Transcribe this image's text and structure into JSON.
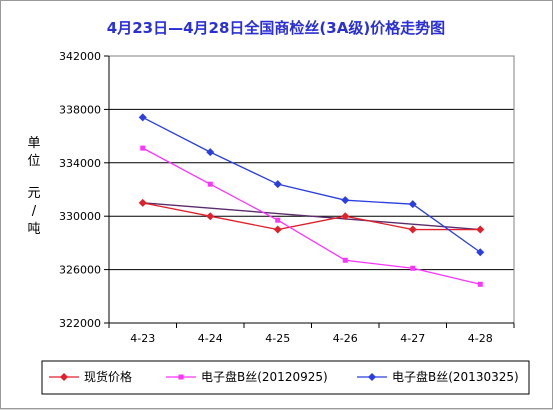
{
  "chart_data": {
    "type": "line",
    "title": "4月23日—4月28日全国商检丝(3A级)价格走势图",
    "ylabel_chars": [
      "单",
      "位",
      "元",
      "/",
      "吨"
    ],
    "categories": [
      "4-23",
      "4-24",
      "4-25",
      "4-26",
      "4-27",
      "4-28"
    ],
    "ylim": [
      322000,
      342000
    ],
    "yticks": [
      322000,
      326000,
      330000,
      334000,
      338000,
      342000
    ],
    "ytick_labels": [
      "322000",
      "326000",
      "330000",
      "334000",
      "338000",
      "342000"
    ],
    "grid": true,
    "legend_position": "bottom",
    "series": [
      {
        "name": "现货价格",
        "color": "#e0202a",
        "marker": "diamond",
        "values": [
          331000,
          330000,
          329000,
          330000,
          329000,
          329000
        ]
      },
      {
        "name": "电子盘B丝(20120925)",
        "color": "#ff33ff",
        "marker": "square",
        "values": [
          335100,
          332400,
          329700,
          326700,
          326100,
          324900
        ]
      },
      {
        "name": "电子盘B丝(20130325)",
        "color": "#2b3ee0",
        "marker": "diamond",
        "values": [
          337400,
          334800,
          332400,
          331200,
          330900,
          327300
        ]
      }
    ],
    "mean_line_color": "#5a2d6a"
  }
}
